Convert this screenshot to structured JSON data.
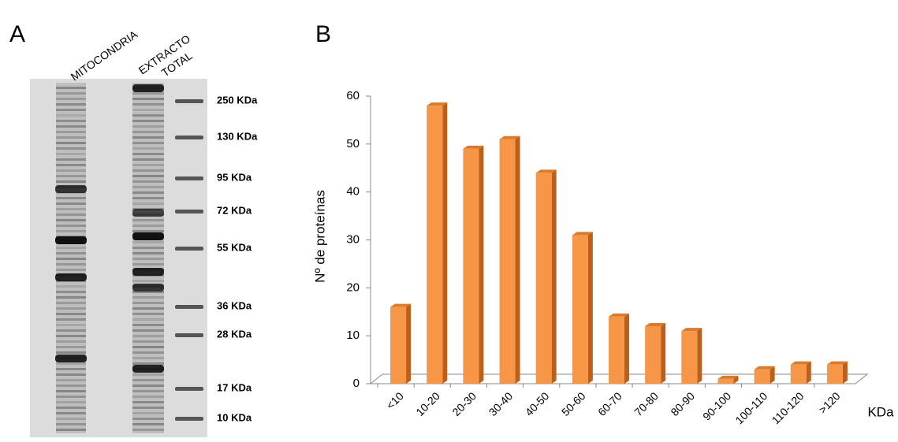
{
  "panel_a": {
    "label": "A",
    "lanes": [
      "MITOCONDRIA",
      "EXTRACTO",
      "TOTAL"
    ],
    "markers": [
      "250 KDa",
      "130 KDa",
      "95 KDa",
      "72 KDa",
      "55 KDa",
      "36 KDa",
      "28 KDa",
      "17 KDa",
      "10 KDa"
    ]
  },
  "chart_data": {
    "type": "bar",
    "panel_label": "B",
    "y_label": "Nº de proteínas",
    "x_label": "KDa",
    "categories": [
      "<10",
      "10-20",
      "20-30",
      "30-40",
      "40-50",
      "50-60",
      "60-70",
      "70-80",
      "80-90",
      "90-100",
      "100-110",
      "110-120",
      ">120"
    ],
    "values": [
      16,
      58,
      49,
      51,
      44,
      31,
      14,
      12,
      11,
      1,
      3,
      4,
      4
    ],
    "color": "#f79646",
    "ylim": [
      0,
      60
    ],
    "yticks": [
      0,
      10,
      20,
      30,
      40,
      50,
      60
    ],
    "grid": false
  }
}
